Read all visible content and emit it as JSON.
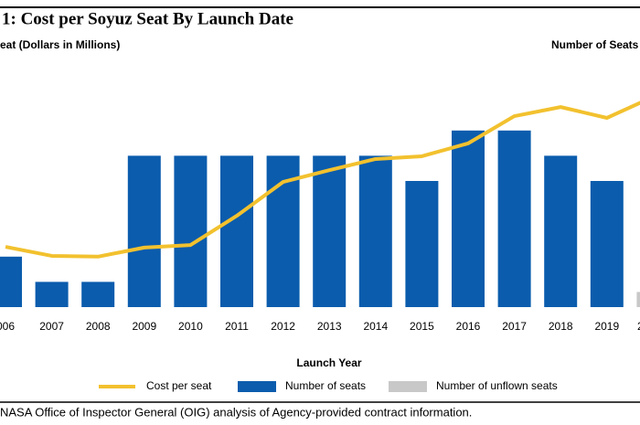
{
  "chart_data": {
    "type": "bar-line",
    "title": "1:  Cost per Soyuz Seat By Launch Date",
    "ylabel": "eat (Dollars in Millions)",
    "y2label": "Number of Seats",
    "xlabel": "Launch Year",
    "source": "NASA Office of Inspector General (OIG) analysis of Agency-provided contract information.",
    "categories": [
      "006",
      "2007",
      "2008",
      "2009",
      "2010",
      "2011",
      "2012",
      "2013",
      "2014",
      "2015",
      "2016",
      "2017",
      "2018",
      "2019",
      "2"
    ],
    "ylim": [
      0,
      100
    ],
    "y2lim": [
      0,
      10
    ],
    "series": [
      {
        "name": "Cost per seat",
        "type": "line",
        "axis": "y",
        "color": "#f2c12e",
        "values": [
          23.9,
          20.3,
          20.0,
          23.6,
          24.6,
          36.2,
          49.6,
          54.3,
          58.7,
          59.8,
          64.9,
          75.7,
          79.3,
          75.0,
          83.3
        ]
      },
      {
        "name": "Number of seats",
        "type": "bar",
        "axis": "y2",
        "color": "#0b5cad",
        "values": [
          2,
          1,
          1,
          6,
          6,
          6,
          6,
          6,
          6,
          5,
          7,
          7,
          6,
          5,
          null
        ]
      },
      {
        "name": "Number of unflown seats",
        "type": "bar",
        "axis": "y2",
        "color": "#c8c8c8",
        "values": [
          0,
          0,
          0,
          0,
          0,
          0,
          0,
          0,
          0,
          0,
          0,
          0,
          0,
          0,
          0.6
        ]
      }
    ]
  }
}
